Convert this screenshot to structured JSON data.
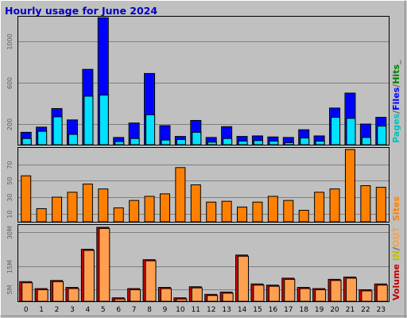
{
  "title": "Hourly usage for June 2024",
  "side_labels": {
    "top": [
      {
        "text": "Pages",
        "color": "#00c0c0"
      },
      {
        "text": "/",
        "color": "#606060"
      },
      {
        "text": "Files",
        "color": "#0000ff"
      },
      {
        "text": "/",
        "color": "#606060"
      },
      {
        "text": "Hits",
        "color": "#008000"
      },
      {
        "text": "_",
        "color": "#606060"
      }
    ],
    "middle": [
      {
        "text": "Sites",
        "color": "#ff8000"
      }
    ],
    "bottom": [
      {
        "text": "Volume",
        "color": "#c00000"
      },
      {
        "text": " IN",
        "color": "#c0c000"
      },
      {
        "text": "/",
        "color": "#606060"
      },
      {
        "text": "OUT",
        "color": "#ffa040"
      }
    ]
  },
  "colors": {
    "frame_bg": "#c0c0c0",
    "plot_bg": "#c0c0c0",
    "grid": "#808080",
    "hits": "#0040c0",
    "files": "#0000ff",
    "pages": "#00e0ff",
    "sites": "#ff8000",
    "vol_in": "#d00000",
    "vol_out": "#ffa050"
  },
  "chart_data": [
    {
      "type": "bar",
      "name": "usage",
      "categories": [
        "0",
        "1",
        "2",
        "3",
        "4",
        "5",
        "6",
        "7",
        "8",
        "9",
        "10",
        "11",
        "12",
        "13",
        "14",
        "15",
        "16",
        "17",
        "18",
        "19",
        "20",
        "21",
        "22",
        "23"
      ],
      "yticks": [
        200,
        600,
        1000
      ],
      "ylim": [
        0,
        1240
      ],
      "series": [
        {
          "name": "Hits",
          "values": [
            120,
            170,
            350,
            240,
            730,
            1230,
            70,
            210,
            690,
            185,
            80,
            235,
            70,
            175,
            80,
            85,
            75,
            70,
            145,
            85,
            355,
            500,
            200,
            265
          ]
        },
        {
          "name": "Files",
          "values": [
            115,
            165,
            345,
            235,
            725,
            1225,
            65,
            205,
            685,
            180,
            75,
            230,
            65,
            170,
            75,
            80,
            70,
            65,
            140,
            80,
            350,
            495,
            195,
            260
          ]
        },
        {
          "name": "Pages",
          "values": [
            60,
            130,
            270,
            100,
            470,
            480,
            30,
            60,
            290,
            45,
            50,
            120,
            25,
            60,
            35,
            40,
            35,
            20,
            65,
            35,
            265,
            255,
            70,
            180
          ]
        }
      ]
    },
    {
      "type": "bar",
      "name": "sites",
      "categories": [
        "0",
        "1",
        "2",
        "3",
        "4",
        "5",
        "6",
        "7",
        "8",
        "9",
        "10",
        "11",
        "12",
        "13",
        "14",
        "15",
        "16",
        "17",
        "18",
        "19",
        "20",
        "21",
        "22",
        "23"
      ],
      "yticks": [
        10,
        30,
        50,
        70
      ],
      "ylim": [
        0,
        90
      ],
      "series": [
        {
          "name": "Sites",
          "values": [
            56,
            16,
            30,
            36,
            46,
            40,
            17,
            26,
            31,
            34,
            66,
            45,
            24,
            25,
            18,
            24,
            31,
            26,
            14,
            36,
            40,
            88,
            44,
            42
          ]
        }
      ]
    },
    {
      "type": "bar",
      "name": "volume",
      "categories": [
        "0",
        "1",
        "2",
        "3",
        "4",
        "5",
        "6",
        "7",
        "8",
        "9",
        "10",
        "11",
        "12",
        "13",
        "14",
        "15",
        "16",
        "17",
        "18",
        "19",
        "20",
        "21",
        "22",
        "23"
      ],
      "yticks": [
        "5M",
        "15M",
        "30M"
      ],
      "ytick_values": [
        5,
        15,
        30
      ],
      "ylim": [
        0,
        33
      ],
      "series": [
        {
          "name": "IN",
          "values": [
            8.5,
            5.5,
            9.0,
            6.0,
            22.5,
            32.0,
            1.5,
            5.5,
            18.0,
            6.0,
            1.5,
            6.3,
            3.0,
            4.0,
            20.0,
            7.5,
            7.0,
            10.0,
            6.0,
            5.5,
            9.5,
            10.5,
            5.0,
            7.5
          ]
        },
        {
          "name": "OUT",
          "values": [
            8.0,
            5.0,
            8.5,
            5.5,
            22.0,
            31.5,
            1.0,
            5.0,
            17.5,
            5.5,
            1.0,
            5.8,
            2.5,
            3.5,
            19.5,
            7.0,
            6.5,
            9.5,
            5.5,
            5.0,
            9.0,
            10.0,
            4.5,
            7.0
          ]
        }
      ]
    }
  ]
}
